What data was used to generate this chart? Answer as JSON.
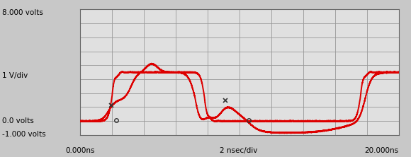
{
  "xlabel_left": "0.000ns",
  "xlabel_center": "2 nsec/div",
  "xlabel_right": "20.000ns",
  "ylabel_top": "8.000 volts",
  "ylabel_mid": "1 V/div",
  "ylabel_zero": "0.0 volts",
  "ylabel_bot": "-1.000 volts",
  "xmin": 0,
  "xmax": 20,
  "ymin": -1.0,
  "ymax": 8.0,
  "grid_color": "#999999",
  "bg_color": "#c8c8c8",
  "plot_bg_color": "#e0e0e0",
  "line_color": "#dd0000",
  "line_width": 1.4,
  "nx_divs": 10,
  "ny_divs": 9,
  "marker_color": "#333333"
}
